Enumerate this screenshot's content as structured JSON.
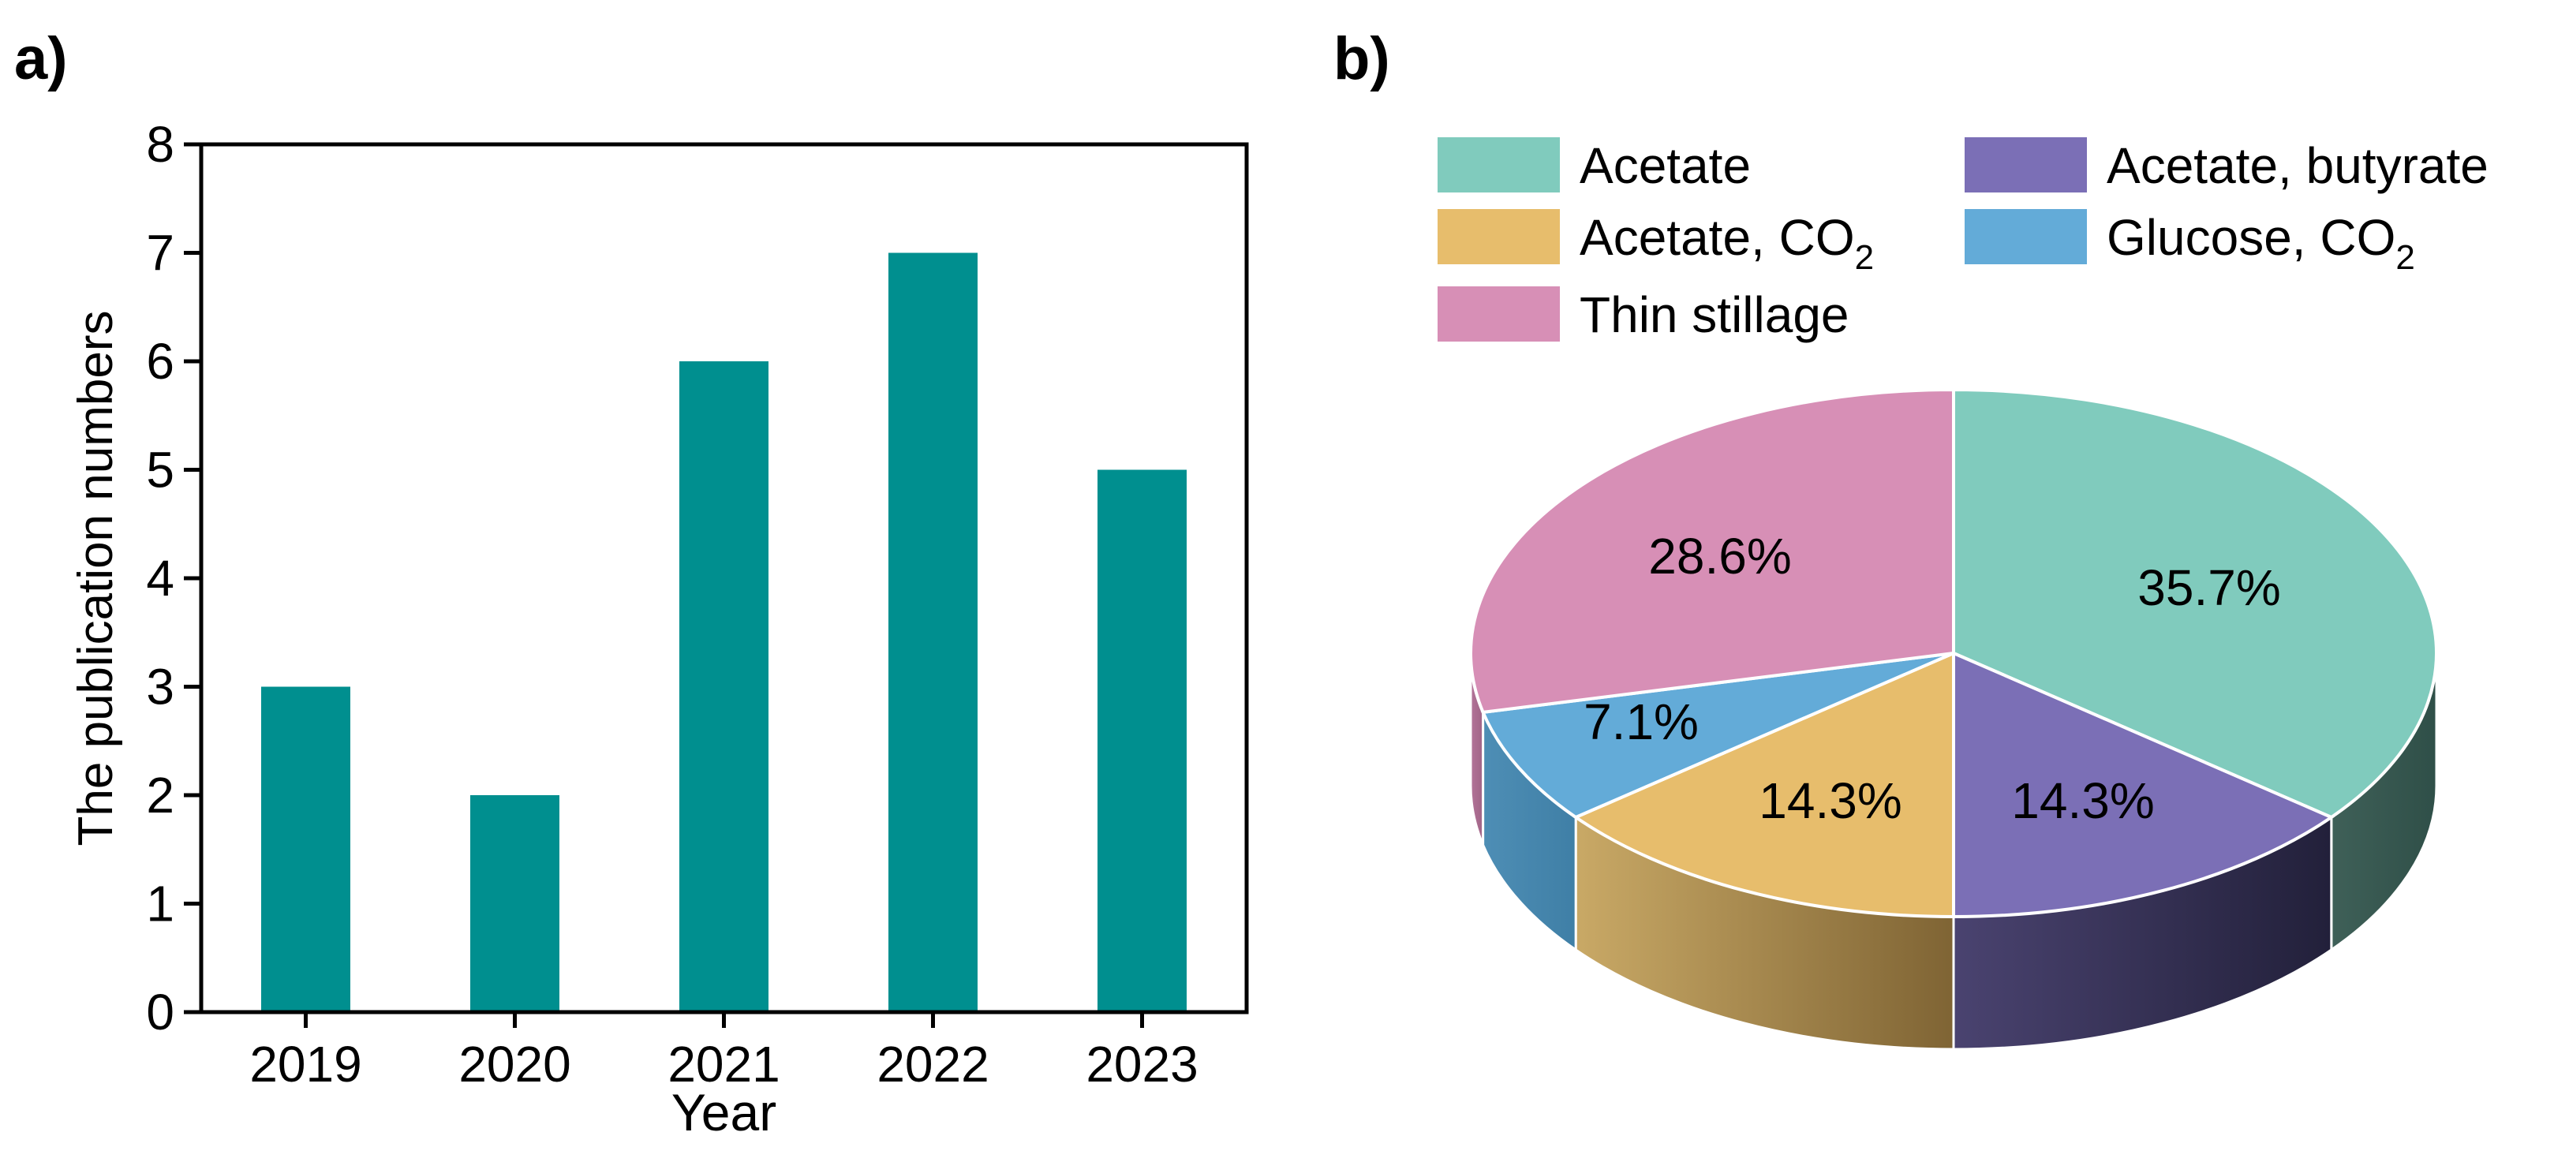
{
  "panels": {
    "a": {
      "label": "a)"
    },
    "b": {
      "label": "b)"
    }
  },
  "chart_data": [
    {
      "type": "bar",
      "panel": "a",
      "title": "",
      "categories": [
        "2019",
        "2020",
        "2021",
        "2022",
        "2023"
      ],
      "values": [
        3,
        2,
        6,
        7,
        5
      ],
      "xlabel": "Year",
      "ylabel": "The publication numbers",
      "ylim": [
        0,
        8
      ],
      "yticks": [
        "0",
        "1",
        "2",
        "3",
        "4",
        "5",
        "6",
        "7",
        "8"
      ],
      "bar_color": "#008f8f",
      "grid": false
    },
    {
      "type": "pie",
      "panel": "b",
      "style": "3d",
      "slices": [
        {
          "label": "Acetate",
          "value": 35.7,
          "display": "35.7%",
          "color": "#80cbbd",
          "side_dark": "#2f4f48",
          "side_light": "#3f6058"
        },
        {
          "label": "Acetate, butyrate",
          "value": 14.3,
          "display": "14.3%",
          "color": "#7b6fb6",
          "side_dark": "#22203a",
          "side_light": "#4a4370"
        },
        {
          "label": "Acetate, CO2",
          "value": 14.3,
          "display": "14.3%",
          "color": "#e7bd6c",
          "side_dark": "#7f6434",
          "side_light": "#c9a966"
        },
        {
          "label": "Glucose, CO2",
          "value": 7.1,
          "display": "7.1%",
          "color": "#63abd8",
          "side_dark": "#3f7fa6",
          "side_light": "#4e8eb5"
        },
        {
          "label": "Thin stillage",
          "value": 28.6,
          "display": "28.6%",
          "color": "#d78fb6",
          "side_dark": "#a06486",
          "side_light": "#b37499"
        }
      ],
      "legend": [
        {
          "text": "Acetate",
          "sub": ""
        },
        {
          "text": "Acetate, butyrate",
          "sub": ""
        },
        {
          "text": "Acetate, CO",
          "sub": "2"
        },
        {
          "text": "Glucose, CO",
          "sub": "2"
        },
        {
          "text": "Thin stillage",
          "sub": ""
        }
      ],
      "legend_position": "top"
    }
  ]
}
